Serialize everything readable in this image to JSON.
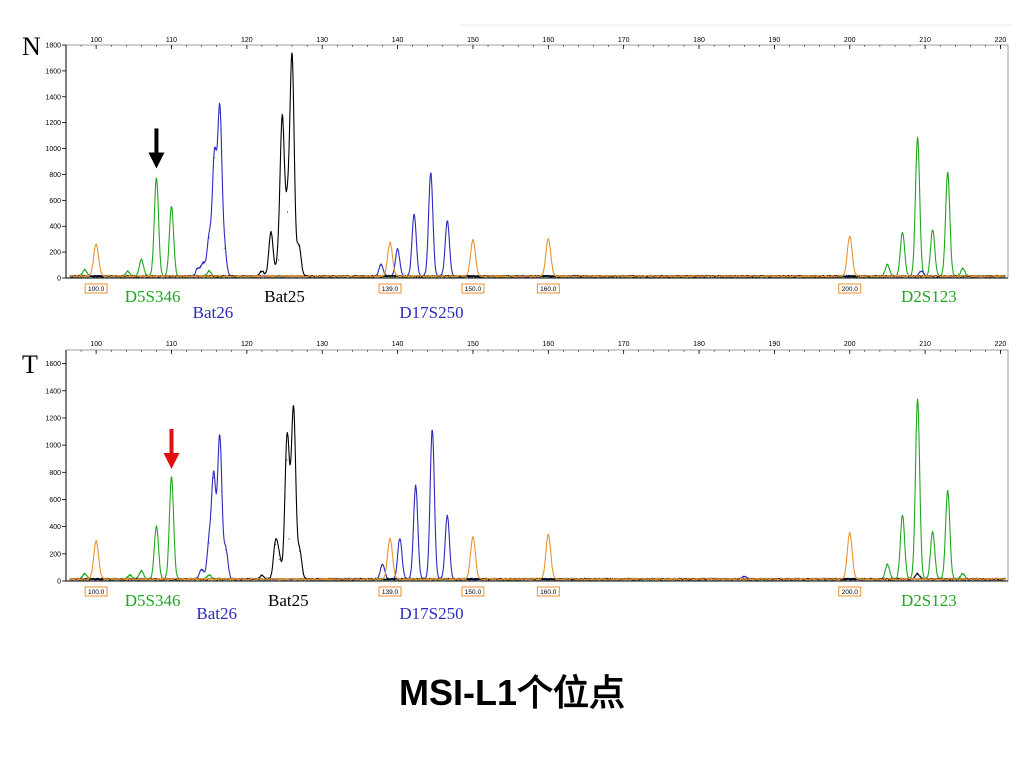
{
  "caption": "MSI-L1个位点",
  "colors": {
    "green": "#1fa81f",
    "blue": "#2b2bbf",
    "black": "#000000",
    "orange": "#e8932e",
    "red": "#e01010",
    "axis_black": "#000000"
  },
  "chart_data": [
    {
      "type": "line",
      "panel_label": "N",
      "xlim": [
        96,
        221
      ],
      "ylim": [
        0,
        1800
      ],
      "x_ticks": [
        100,
        110,
        120,
        130,
        140,
        150,
        160,
        170,
        180,
        190,
        200,
        210,
        220
      ],
      "y_ticks": [
        0,
        200,
        400,
        600,
        800,
        1000,
        1200,
        1400,
        1600,
        1800
      ],
      "size_standards": [
        "100.0",
        "139.0",
        "150.0",
        "160.0",
        "200.0"
      ],
      "marker_labels": [
        {
          "text": "D5S346",
          "color": "green",
          "x": 107.5,
          "row": 0
        },
        {
          "text": "Bat26",
          "color": "blue",
          "x": 115.5,
          "row": 1
        },
        {
          "text": "Bat25",
          "color": "black",
          "x": 125.0,
          "row": 0
        },
        {
          "text": "D17S250",
          "color": "blue",
          "x": 144.5,
          "row": 1
        },
        {
          "text": "D2S123",
          "color": "green",
          "x": 210.5,
          "row": 0
        }
      ],
      "arrow": {
        "x": 108.0,
        "y": 800,
        "color": "black"
      },
      "series": [
        {
          "color": "green",
          "peaks": [
            [
              98.5,
              50
            ],
            [
              104.2,
              40
            ],
            [
              106.0,
              130
            ],
            [
              108.0,
              760
            ],
            [
              110.0,
              540
            ],
            [
              115.0,
              40
            ],
            [
              205.0,
              90
            ],
            [
              207.0,
              340
            ],
            [
              209.0,
              1070
            ],
            [
              211.0,
              360
            ],
            [
              213.0,
              800
            ],
            [
              215.0,
              60
            ]
          ]
        },
        {
          "color": "blue",
          "peaks": [
            [
              113.5,
              60
            ],
            [
              114.2,
              100
            ],
            [
              115.0,
              300
            ],
            [
              115.7,
              920
            ],
            [
              116.4,
              1270
            ],
            [
              117.0,
              220
            ],
            [
              137.8,
              90
            ],
            [
              140.0,
              210
            ],
            [
              142.2,
              480
            ],
            [
              144.4,
              800
            ],
            [
              146.6,
              430
            ],
            [
              209.5,
              40
            ]
          ]
        },
        {
          "color": "black",
          "peaks": [
            [
              122.0,
              40
            ],
            [
              123.2,
              340
            ],
            [
              124.2,
              130
            ],
            [
              124.7,
              1200
            ],
            [
              125.4,
              500
            ],
            [
              126.0,
              1670
            ],
            [
              126.9,
              240
            ]
          ]
        },
        {
          "color": "orange",
          "peaks": [
            [
              100.0,
              250
            ],
            [
              139.0,
              260
            ],
            [
              150.0,
              280
            ],
            [
              160.0,
              290
            ],
            [
              200.0,
              310
            ]
          ]
        }
      ]
    },
    {
      "type": "line",
      "panel_label": "T",
      "xlim": [
        96,
        221
      ],
      "ylim": [
        0,
        1700
      ],
      "x_ticks": [
        100,
        110,
        120,
        130,
        140,
        150,
        160,
        170,
        180,
        190,
        200,
        210,
        220
      ],
      "y_ticks": [
        0,
        200,
        400,
        600,
        800,
        1000,
        1200,
        1400,
        1600
      ],
      "size_standards": [
        "100.0",
        "139.0",
        "150.0",
        "160.0",
        "200.0"
      ],
      "marker_labels": [
        {
          "text": "D5S346",
          "color": "green",
          "x": 107.5,
          "row": 0
        },
        {
          "text": "Bat26",
          "color": "blue",
          "x": 116.0,
          "row": 1
        },
        {
          "text": "Bat25",
          "color": "black",
          "x": 125.5,
          "row": 0
        },
        {
          "text": "D17S250",
          "color": "blue",
          "x": 144.5,
          "row": 1
        },
        {
          "text": "D2S123",
          "color": "green",
          "x": 210.5,
          "row": 0
        }
      ],
      "arrow": {
        "x": 110.0,
        "y": 780,
        "color": "red"
      },
      "series": [
        {
          "color": "green",
          "peaks": [
            [
              98.5,
              40
            ],
            [
              104.5,
              30
            ],
            [
              106.0,
              60
            ],
            [
              108.0,
              390
            ],
            [
              110.0,
              750
            ],
            [
              115.0,
              30
            ],
            [
              205.0,
              110
            ],
            [
              207.0,
              470
            ],
            [
              209.0,
              1320
            ],
            [
              211.0,
              350
            ],
            [
              213.0,
              650
            ],
            [
              215.0,
              40
            ]
          ]
        },
        {
          "color": "blue",
          "peaks": [
            [
              114.0,
              70
            ],
            [
              115.0,
              270
            ],
            [
              115.6,
              750
            ],
            [
              116.4,
              1050
            ],
            [
              117.2,
              220
            ],
            [
              138.0,
              110
            ],
            [
              140.3,
              300
            ],
            [
              142.4,
              690
            ],
            [
              144.6,
              1100
            ],
            [
              146.6,
              470
            ],
            [
              186.0,
              20
            ]
          ]
        },
        {
          "color": "black",
          "peaks": [
            [
              122.0,
              30
            ],
            [
              123.8,
              260
            ],
            [
              124.3,
              150
            ],
            [
              125.3,
              880
            ],
            [
              125.6,
              300
            ],
            [
              126.2,
              1240
            ],
            [
              127.0,
              210
            ],
            [
              209.0,
              40
            ]
          ]
        },
        {
          "color": "orange",
          "peaks": [
            [
              100.0,
              280
            ],
            [
              139.0,
              300
            ],
            [
              150.0,
              310
            ],
            [
              160.0,
              330
            ],
            [
              200.0,
              340
            ]
          ]
        }
      ]
    }
  ]
}
